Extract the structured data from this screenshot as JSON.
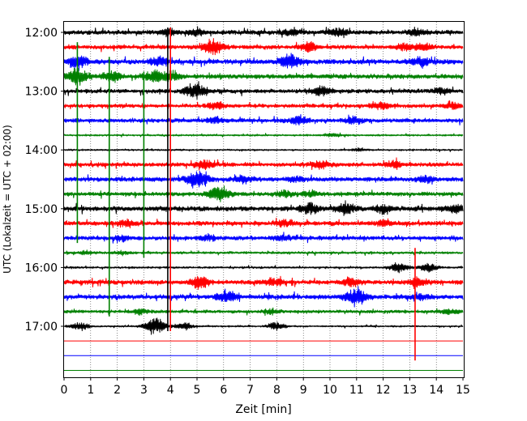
{
  "chart_data": {
    "type": "line",
    "subtype": "helicorder (seismogram drum plot)",
    "xlabel": "Zeit  [min]",
    "ylabel": "UTC (Lokalzeit = UTC + 02:00)",
    "xlim": [
      0,
      15
    ],
    "x_ticks": [
      "0",
      "1",
      "2",
      "3",
      "4",
      "5",
      "6",
      "7",
      "8",
      "9",
      "10",
      "11",
      "12",
      "13",
      "14",
      "15"
    ],
    "y_tick_labels": [
      "12:00",
      "13:00",
      "14:00",
      "15:00",
      "16:00",
      "17:00"
    ],
    "trace_interval_min": 15,
    "start_time": "12:00",
    "trace_colors": [
      "#000000",
      "#ff0000",
      "#0000ff",
      "#008000"
    ],
    "grid": "vertical dotted gridlines at every minute",
    "traces": [
      {
        "start": "12:00",
        "color": "#000000",
        "amplitude": 0.55,
        "events": [
          [
            4.0,
            0.7
          ],
          [
            5.0,
            0.6
          ],
          [
            8.5,
            0.6
          ],
          [
            10.3,
            0.8
          ],
          [
            13.3,
            0.6
          ]
        ]
      },
      {
        "start": "12:15",
        "color": "#ff0000",
        "amplitude": 0.5,
        "events": [
          [
            5.6,
            1.6
          ],
          [
            9.2,
            1.0
          ],
          [
            12.8,
            0.7
          ],
          [
            13.5,
            0.8
          ]
        ]
      },
      {
        "start": "12:30",
        "color": "#0000ff",
        "amplitude": 0.6,
        "events": [
          [
            0.5,
            1.4
          ],
          [
            3.6,
            1.0
          ],
          [
            8.5,
            1.6
          ],
          [
            13.4,
            0.9
          ]
        ]
      },
      {
        "start": "12:45",
        "color": "#008000",
        "amplitude": 0.55,
        "events": [
          [
            0.5,
            1.7
          ],
          [
            1.8,
            1.0
          ],
          [
            3.4,
            1.3
          ],
          [
            4.1,
            1.0
          ]
        ]
      },
      {
        "start": "13:00",
        "color": "#000000",
        "amplitude": 0.5,
        "events": [
          [
            4.9,
            1.7
          ],
          [
            9.7,
            0.9
          ],
          [
            14.2,
            0.6
          ]
        ]
      },
      {
        "start": "13:15",
        "color": "#ff0000",
        "amplitude": 0.45,
        "events": [
          [
            5.7,
            0.8
          ],
          [
            11.9,
            0.8
          ],
          [
            14.6,
            0.7
          ]
        ]
      },
      {
        "start": "13:30",
        "color": "#0000ff",
        "amplitude": 0.5,
        "events": [
          [
            5.7,
            0.6
          ],
          [
            8.8,
            1.0
          ],
          [
            10.9,
            0.7
          ]
        ]
      },
      {
        "start": "13:45",
        "color": "#008000",
        "amplitude": 0.22,
        "events": [
          [
            10.1,
            0.4
          ]
        ]
      },
      {
        "start": "14:00",
        "color": "#000000",
        "amplitude": 0.2,
        "events": [
          [
            11.1,
            0.3
          ]
        ]
      },
      {
        "start": "14:15",
        "color": "#ff0000",
        "amplitude": 0.5,
        "events": [
          [
            5.3,
            0.9
          ],
          [
            9.7,
            0.8
          ],
          [
            12.4,
            0.7
          ]
        ]
      },
      {
        "start": "14:30",
        "color": "#0000ff",
        "amplitude": 0.55,
        "events": [
          [
            5.0,
            1.8
          ],
          [
            6.8,
            0.7
          ],
          [
            8.7,
            0.6
          ],
          [
            13.6,
            0.6
          ]
        ]
      },
      {
        "start": "14:45",
        "color": "#008000",
        "amplitude": 0.5,
        "events": [
          [
            5.8,
            1.8
          ],
          [
            8.3,
            0.7
          ],
          [
            9.3,
            0.6
          ]
        ]
      },
      {
        "start": "15:00",
        "color": "#000000",
        "amplitude": 0.6,
        "events": [
          [
            9.2,
            1.1
          ],
          [
            10.6,
            1.2
          ],
          [
            12.0,
            0.9
          ],
          [
            14.7,
            0.8
          ]
        ]
      },
      {
        "start": "15:15",
        "color": "#ff0000",
        "amplitude": 0.55,
        "events": [
          [
            2.3,
            0.7
          ],
          [
            8.3,
            0.7
          ],
          [
            12.0,
            0.6
          ]
        ]
      },
      {
        "start": "15:30",
        "color": "#0000ff",
        "amplitude": 0.5,
        "events": [
          [
            2.2,
            0.6
          ],
          [
            5.4,
            0.6
          ],
          [
            8.2,
            0.6
          ]
        ]
      },
      {
        "start": "15:45",
        "color": "#008000",
        "amplitude": 0.3,
        "events": [
          [
            0.8,
            0.4
          ],
          [
            2.2,
            0.4
          ]
        ]
      },
      {
        "start": "16:00",
        "color": "#000000",
        "amplitude": 0.25,
        "events": [
          [
            12.6,
            1.1
          ],
          [
            13.7,
            1.0
          ]
        ]
      },
      {
        "start": "16:15",
        "color": "#ff0000",
        "amplitude": 0.55,
        "events": [
          [
            5.1,
            1.3
          ],
          [
            7.9,
            0.8
          ],
          [
            10.8,
            0.8
          ],
          [
            13.3,
            0.9
          ]
        ]
      },
      {
        "start": "16:30",
        "color": "#0000ff",
        "amplitude": 0.55,
        "events": [
          [
            6.1,
            1.2
          ],
          [
            11.0,
            1.8
          ],
          [
            13.4,
            0.6
          ]
        ]
      },
      {
        "start": "16:45",
        "color": "#008000",
        "amplitude": 0.4,
        "events": [
          [
            2.9,
            0.5
          ],
          [
            7.8,
            0.5
          ],
          [
            14.5,
            0.5
          ]
        ]
      },
      {
        "start": "17:00",
        "color": "#000000",
        "amplitude": 0.2,
        "events": [
          [
            0.6,
            0.9
          ],
          [
            3.4,
            1.9
          ],
          [
            4.5,
            0.9
          ],
          [
            8.0,
            0.9
          ]
        ]
      },
      {
        "start": "17:15",
        "color": "#ff0000",
        "amplitude": 0.0,
        "events": []
      },
      {
        "start": "17:30",
        "color": "#0000ff",
        "amplitude": 0.0,
        "events": []
      },
      {
        "start": "17:45",
        "color": "#008000",
        "amplitude": 0.0,
        "events": []
      }
    ],
    "spikes": [
      {
        "x": 0.5,
        "from": "12:15",
        "to": "15:30",
        "color": "#008000"
      },
      {
        "x": 1.7,
        "from": "12:30",
        "to": "16:45",
        "color": "#008000"
      },
      {
        "x": 3.0,
        "from": "12:45",
        "to": "15:45",
        "color": "#008000"
      },
      {
        "x": 3.9,
        "from": "12:00",
        "to": "17:00",
        "color": "#000000"
      },
      {
        "x": 4.0,
        "from": "12:00",
        "to": "17:00",
        "color": "#ff0000"
      },
      {
        "x": 13.2,
        "from": "15:45",
        "to": "17:30",
        "color": "#ff0000"
      }
    ]
  }
}
